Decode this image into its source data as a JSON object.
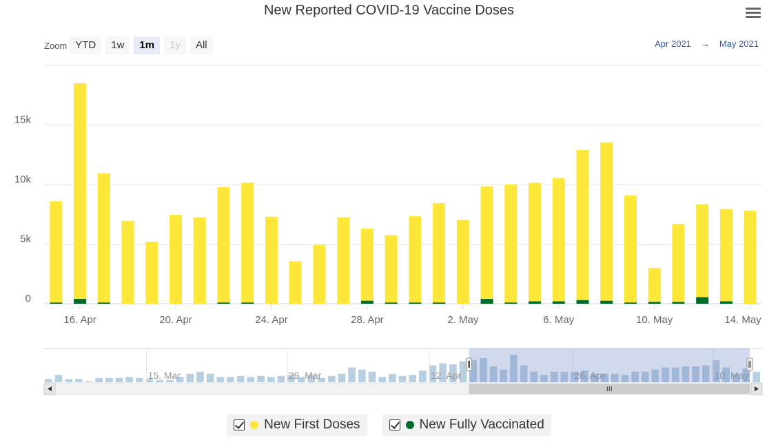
{
  "title": "New Reported COVID-19 Vaccine Doses",
  "menu": {
    "icon": "hamburger-menu-icon"
  },
  "range_selector": {
    "zoom_label": "Zoom",
    "buttons": [
      {
        "label": "YTD",
        "state": "normal"
      },
      {
        "label": "1w",
        "state": "normal"
      },
      {
        "label": "1m",
        "state": "selected"
      },
      {
        "label": "1y",
        "state": "disabled"
      },
      {
        "label": "All",
        "state": "normal"
      }
    ],
    "from": "Apr 2021",
    "arrow": "→",
    "to": "May 2021"
  },
  "colors": {
    "first": "#fde73a",
    "full": "#006b2d",
    "navigator_bar": "#b8cfe0",
    "navigator_mask": "rgba(102,133,194,0.3)"
  },
  "chart_data": {
    "type": "bar",
    "stacked": true,
    "categories": [
      "15 Apr",
      "16 Apr",
      "17 Apr",
      "18 Apr",
      "19 Apr",
      "20 Apr",
      "21 Apr",
      "22 Apr",
      "23 Apr",
      "24 Apr",
      "25 Apr",
      "26 Apr",
      "27 Apr",
      "28 Apr",
      "29 Apr",
      "30 Apr",
      "1 May",
      "2 May",
      "3 May",
      "4 May",
      "5 May",
      "6 May",
      "7 May",
      "8 May",
      "9 May",
      "10 May",
      "11 May",
      "12 May",
      "13 May",
      "14 May"
    ],
    "series": [
      {
        "name": "New First Doses",
        "values": [
          8500,
          18100,
          10850,
          6950,
          5200,
          7450,
          7250,
          9700,
          10050,
          7300,
          3550,
          4950,
          7250,
          6050,
          5650,
          7250,
          8350,
          7050,
          9450,
          9900,
          9950,
          10350,
          12600,
          13300,
          9000,
          2850,
          6550,
          7800,
          7750,
          7800
        ]
      },
      {
        "name": "New Fully Vaccinated",
        "values": [
          100,
          400,
          100,
          0,
          0,
          0,
          0,
          100,
          100,
          0,
          0,
          0,
          0,
          250,
          100,
          100,
          100,
          0,
          400,
          100,
          200,
          200,
          300,
          250,
          100,
          150,
          150,
          550,
          200,
          0
        ]
      }
    ],
    "x_tick_labels": [
      "16. Apr",
      "20. Apr",
      "24. Apr",
      "28. Apr",
      "2. May",
      "6. May",
      "10. May",
      "14. May"
    ],
    "x_tick_indices": [
      1,
      5,
      9,
      13,
      17,
      21,
      25,
      29
    ],
    "y_tick_labels": [
      "0",
      "5k",
      "10k",
      "15k"
    ],
    "y_tick_values": [
      0,
      5000,
      10000,
      15000
    ],
    "ylim": [
      0,
      20000
    ],
    "grid": true,
    "legend_position": "bottom-center",
    "navigator": {
      "tick_labels": [
        "15. Mar",
        "29. Mar",
        "12. Apr",
        "26. Apr",
        "10. May"
      ],
      "values": [
        0.3,
        0.7,
        0.3,
        0.3,
        0.1,
        0.4,
        0.4,
        0.4,
        0.5,
        0.4,
        0.3,
        0.2,
        0.2,
        0.5,
        0.8,
        1.0,
        0.8,
        0.5,
        0.5,
        0.6,
        0.5,
        0.6,
        0.5,
        0.6,
        0.7,
        0.5,
        0.7,
        0.4,
        0.6,
        0.8,
        1.4,
        1.2,
        1.0,
        0.5,
        0.8,
        0.6,
        0.7,
        1.1,
        1.6,
        1.8,
        1.7,
        2.0,
        2.1,
        2.3,
        1.5,
        1.2,
        2.6,
        1.6,
        1.0,
        0.7,
        1.0,
        1.0,
        1.0,
        1.1,
        0.8,
        0.8,
        0.8,
        0.7,
        1.0,
        1.0,
        1.2,
        1.4,
        1.4,
        1.5,
        1.5,
        1.6,
        2.1,
        1.4,
        0.8,
        1.3,
        1.0
      ],
      "selected_fraction": [
        0.583,
        1.0
      ]
    }
  },
  "legend": [
    {
      "label": "New First Doses",
      "color_key": "first"
    },
    {
      "label": "New Fully Vaccinated",
      "color_key": "full"
    }
  ]
}
